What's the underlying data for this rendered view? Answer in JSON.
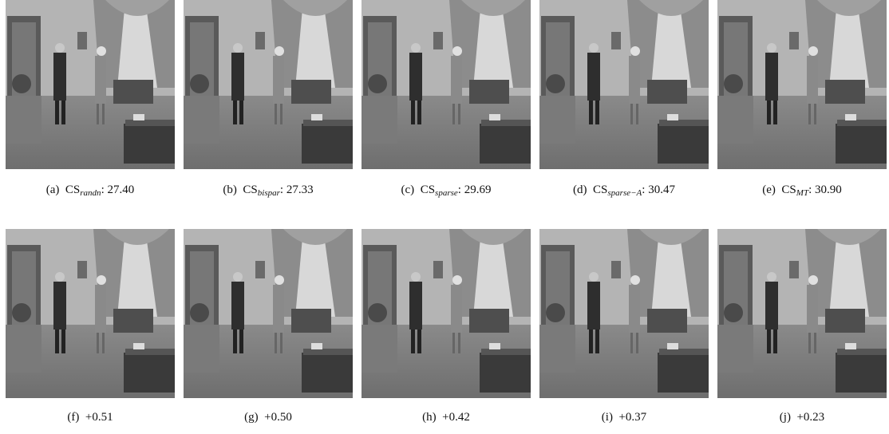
{
  "panels": [
    {
      "label": "(a)",
      "method": "CS",
      "subscript": "randn",
      "tail": ": 27.40"
    },
    {
      "label": "(b)",
      "method": "CS",
      "subscript": "bispar",
      "tail": ": 27.33"
    },
    {
      "label": "(c)",
      "method": "CS",
      "subscript": "sparse",
      "tail": ": 29.69"
    },
    {
      "label": "(d)",
      "method": "CS",
      "subscript": "sparse−A",
      "tail": ": 30.47"
    },
    {
      "label": "(e)",
      "method": "CS",
      "subscript": "MT",
      "tail": ": 30.90"
    },
    {
      "label": "(f)",
      "tail": "+0.51"
    },
    {
      "label": "(g)",
      "tail": "+0.50"
    },
    {
      "label": "(h)",
      "tail": "+0.42"
    },
    {
      "label": "(i)",
      "tail": "+0.37"
    },
    {
      "label": "(j)",
      "tail": "+0.23"
    }
  ]
}
